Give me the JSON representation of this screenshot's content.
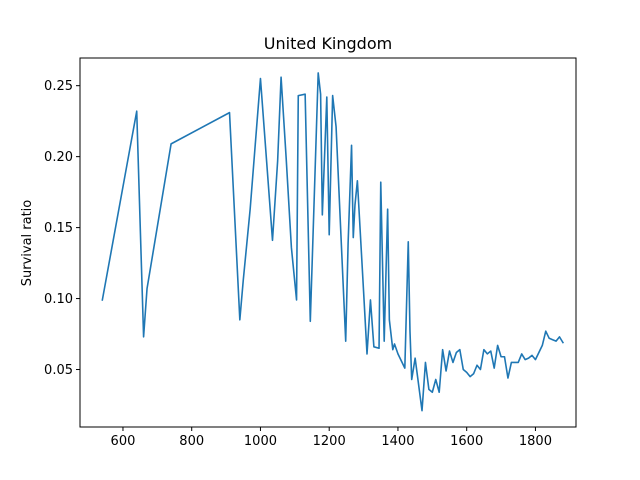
{
  "chart_data": {
    "type": "line",
    "title": "United Kingdom",
    "xlabel": "",
    "ylabel": "Survival ratio",
    "xlim": [
      475,
      1918
    ],
    "ylim": [
      0.0095,
      0.2695
    ],
    "xticks": [
      600,
      800,
      1000,
      1200,
      1400,
      1600,
      1800
    ],
    "yticks": [
      0.05,
      0.1,
      0.15,
      0.2,
      0.25
    ],
    "ytick_labels": [
      "0.05",
      "0.10",
      "0.15",
      "0.20",
      "0.25"
    ],
    "xtick_labels": [
      "600",
      "800",
      "1000",
      "1200",
      "1400",
      "1600",
      "1800"
    ],
    "grid": false,
    "color": "#1f77b4",
    "series": [
      {
        "x": [
          540,
          640,
          660,
          670,
          740,
          910,
          940,
          950,
          970,
          1000,
          1035,
          1050,
          1060,
          1075,
          1090,
          1105,
          1110,
          1130,
          1145,
          1168,
          1175,
          1180,
          1193,
          1200,
          1210,
          1220,
          1248,
          1255,
          1265,
          1270,
          1275,
          1282,
          1300,
          1310,
          1320,
          1330,
          1345,
          1350,
          1360,
          1370,
          1375,
          1385,
          1390,
          1400,
          1420,
          1430,
          1435,
          1440,
          1450,
          1470,
          1480,
          1490,
          1500,
          1510,
          1520,
          1530,
          1540,
          1550,
          1560,
          1570,
          1580,
          1590,
          1600,
          1610,
          1620,
          1630,
          1640,
          1650,
          1660,
          1670,
          1680,
          1690,
          1700,
          1710,
          1720,
          1730,
          1740,
          1750,
          1760,
          1770,
          1780,
          1790,
          1800,
          1810,
          1820,
          1830,
          1840,
          1850,
          1860,
          1870,
          1880
        ],
        "y": [
          0.099,
          0.232,
          0.073,
          0.107,
          0.209,
          0.231,
          0.085,
          0.113,
          0.163,
          0.255,
          0.141,
          0.197,
          0.256,
          0.198,
          0.136,
          0.099,
          0.243,
          0.244,
          0.084,
          0.259,
          0.244,
          0.159,
          0.242,
          0.145,
          0.243,
          0.221,
          0.07,
          0.139,
          0.208,
          0.143,
          0.166,
          0.183,
          0.105,
          0.061,
          0.099,
          0.066,
          0.065,
          0.182,
          0.07,
          0.163,
          0.085,
          0.064,
          0.068,
          0.061,
          0.051,
          0.14,
          0.077,
          0.043,
          0.058,
          0.021,
          0.055,
          0.036,
          0.034,
          0.043,
          0.034,
          0.064,
          0.049,
          0.063,
          0.055,
          0.062,
          0.064,
          0.05,
          0.048,
          0.045,
          0.047,
          0.053,
          0.05,
          0.064,
          0.061,
          0.063,
          0.051,
          0.067,
          0.059,
          0.059,
          0.044,
          0.055,
          0.055,
          0.055,
          0.061,
          0.057,
          0.058,
          0.06,
          0.057,
          0.062,
          0.067,
          0.077,
          0.072,
          0.071,
          0.07,
          0.073,
          0.069
        ]
      }
    ]
  }
}
